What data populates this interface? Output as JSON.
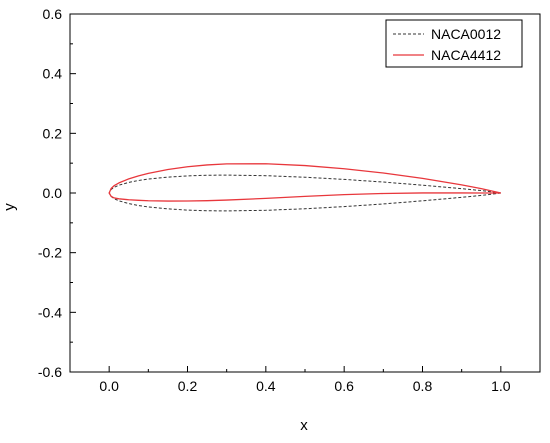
{
  "chart_data": {
    "type": "line",
    "title": "",
    "xlabel": "x",
    "ylabel": "y",
    "xlim": [
      -0.1,
      1.1
    ],
    "ylim": [
      -0.6,
      0.6
    ],
    "x_ticks": [
      "0.0",
      "0.2",
      "0.4",
      "0.6",
      "0.8",
      "1.0"
    ],
    "y_ticks": [
      "-0.6",
      "-0.4",
      "-0.2",
      "0.0",
      "0.2",
      "0.4",
      "0.6"
    ],
    "grid": false,
    "legend_position": "top-right",
    "series": [
      {
        "name": "NACA0012",
        "color": "#333333",
        "dash": "dashed",
        "points": [
          [
            1.0,
            0.0
          ],
          [
            0.95,
            0.0081
          ],
          [
            0.9,
            0.0145
          ],
          [
            0.8,
            0.0262
          ],
          [
            0.7,
            0.0367
          ],
          [
            0.6,
            0.0456
          ],
          [
            0.5,
            0.0529
          ],
          [
            0.4,
            0.058
          ],
          [
            0.3,
            0.06
          ],
          [
            0.25,
            0.0595
          ],
          [
            0.2,
            0.0574
          ],
          [
            0.15,
            0.0532
          ],
          [
            0.1,
            0.0468
          ],
          [
            0.075,
            0.042
          ],
          [
            0.05,
            0.0355
          ],
          [
            0.025,
            0.0262
          ],
          [
            0.0125,
            0.0189
          ],
          [
            0.005,
            0.0118
          ],
          [
            0.0,
            0.0
          ],
          [
            0.005,
            -0.0118
          ],
          [
            0.0125,
            -0.0189
          ],
          [
            0.025,
            -0.0262
          ],
          [
            0.05,
            -0.0355
          ],
          [
            0.075,
            -0.042
          ],
          [
            0.1,
            -0.0468
          ],
          [
            0.15,
            -0.0532
          ],
          [
            0.2,
            -0.0574
          ],
          [
            0.25,
            -0.0595
          ],
          [
            0.3,
            -0.06
          ],
          [
            0.4,
            -0.058
          ],
          [
            0.5,
            -0.0529
          ],
          [
            0.6,
            -0.0456
          ],
          [
            0.7,
            -0.0367
          ],
          [
            0.8,
            -0.0262
          ],
          [
            0.9,
            -0.0145
          ],
          [
            0.95,
            -0.0081
          ],
          [
            1.0,
            0.0
          ]
        ]
      },
      {
        "name": "NACA4412",
        "color": "#e8373c",
        "dash": "solid",
        "points": [
          [
            1.0,
            0.0
          ],
          [
            0.95,
            0.0147
          ],
          [
            0.9,
            0.0271
          ],
          [
            0.8,
            0.0489
          ],
          [
            0.7,
            0.0669
          ],
          [
            0.6,
            0.0814
          ],
          [
            0.5,
            0.0919
          ],
          [
            0.4,
            0.098
          ],
          [
            0.3,
            0.0976
          ],
          [
            0.25,
            0.0941
          ],
          [
            0.2,
            0.088
          ],
          [
            0.15,
            0.0789
          ],
          [
            0.1,
            0.0659
          ],
          [
            0.075,
            0.0576
          ],
          [
            0.05,
            0.0473
          ],
          [
            0.025,
            0.0339
          ],
          [
            0.0125,
            0.0244
          ],
          [
            0.005,
            0.015
          ],
          [
            0.0,
            0.0
          ],
          [
            0.005,
            -0.0112
          ],
          [
            0.0125,
            -0.0165
          ],
          [
            0.025,
            -0.0195
          ],
          [
            0.05,
            -0.0227
          ],
          [
            0.075,
            -0.0245
          ],
          [
            0.1,
            -0.0259
          ],
          [
            0.15,
            -0.0271
          ],
          [
            0.2,
            -0.0269
          ],
          [
            0.25,
            -0.0257
          ],
          [
            0.3,
            -0.0237
          ],
          [
            0.4,
            -0.018
          ],
          [
            0.5,
            -0.0114
          ],
          [
            0.6,
            -0.0055
          ],
          [
            0.7,
            -0.0016
          ],
          [
            0.8,
            0.0002
          ],
          [
            0.9,
            0.0002
          ],
          [
            0.95,
            0.0
          ],
          [
            1.0,
            0.0
          ]
        ]
      }
    ]
  }
}
